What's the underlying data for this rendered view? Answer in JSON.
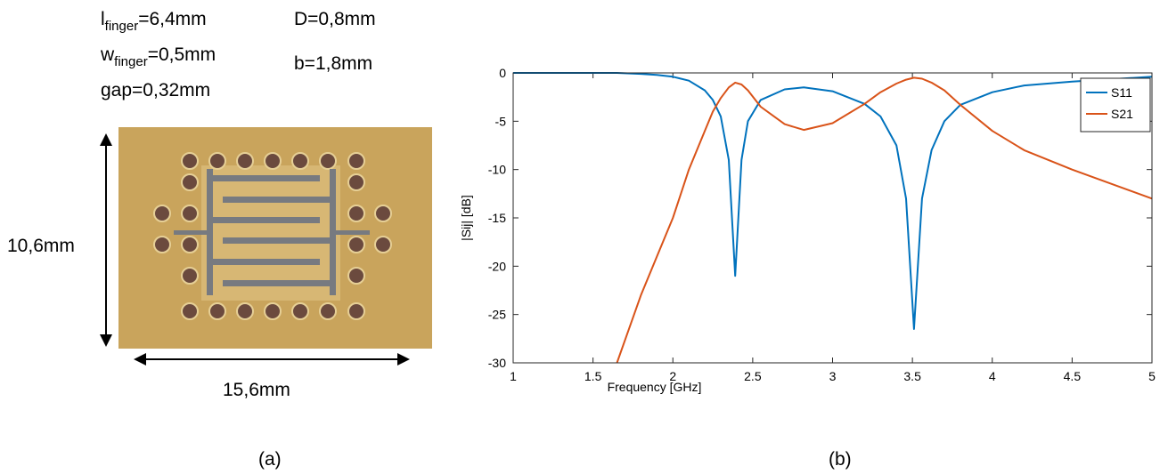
{
  "panel_a": {
    "params": [
      {
        "base": "l",
        "sub": "finger",
        "rest": "=6,4mm"
      },
      {
        "base": "w",
        "sub": "finger",
        "rest": "=0,5mm"
      },
      {
        "base": "gap=0,32mm"
      },
      {
        "base": "D=0,8mm"
      },
      {
        "base": "b=1,8mm"
      }
    ],
    "height_label": "10,6mm",
    "width_label": "15,6mm",
    "caption": "(a)"
  },
  "panel_b_caption": "(b)",
  "chart_data": {
    "type": "line",
    "xlabel": "Frequency [GHz]",
    "ylabel": "|Sij| [dB]",
    "x": [
      1,
      1.5,
      1.65,
      1.8,
      1.9,
      2.0,
      2.1,
      2.2,
      2.25,
      2.3,
      2.35,
      2.39,
      2.43,
      2.47,
      2.55,
      2.7,
      2.82,
      3.0,
      3.2,
      3.3,
      3.4,
      3.46,
      3.51,
      3.56,
      3.62,
      3.7,
      3.8,
      4.0,
      4.2,
      4.5,
      5
    ],
    "series": [
      {
        "name": "S11",
        "color": "#0072bd",
        "values": [
          0,
          0,
          0,
          -0.1,
          -0.2,
          -0.4,
          -0.8,
          -1.8,
          -2.8,
          -4.5,
          -9,
          -21,
          -9,
          -5,
          -2.8,
          -1.7,
          -1.5,
          -1.9,
          -3.2,
          -4.5,
          -7.5,
          -13,
          -26.5,
          -13,
          -8,
          -5,
          -3.3,
          -2,
          -1.3,
          -0.9,
          -0.4
        ]
      },
      {
        "name": "S21",
        "color": "#d95319",
        "values": [
          null,
          null,
          -30,
          -23,
          -19,
          -15,
          -10,
          -6,
          -4,
          -2.6,
          -1.5,
          -1,
          -1.2,
          -1.8,
          -3.5,
          -5.3,
          -5.9,
          -5.2,
          -3.2,
          -2,
          -1.1,
          -0.7,
          -0.5,
          -0.6,
          -1,
          -1.8,
          -3.3,
          -6,
          -8,
          -10,
          -13
        ]
      }
    ],
    "xlim": [
      1,
      5
    ],
    "ylim": [
      -30,
      0
    ],
    "xticks": [
      1,
      1.5,
      2,
      2.5,
      3,
      3.5,
      4,
      4.5,
      5
    ],
    "yticks": [
      -30,
      -25,
      -20,
      -15,
      -10,
      -5,
      0
    ],
    "legend": "top-right"
  }
}
